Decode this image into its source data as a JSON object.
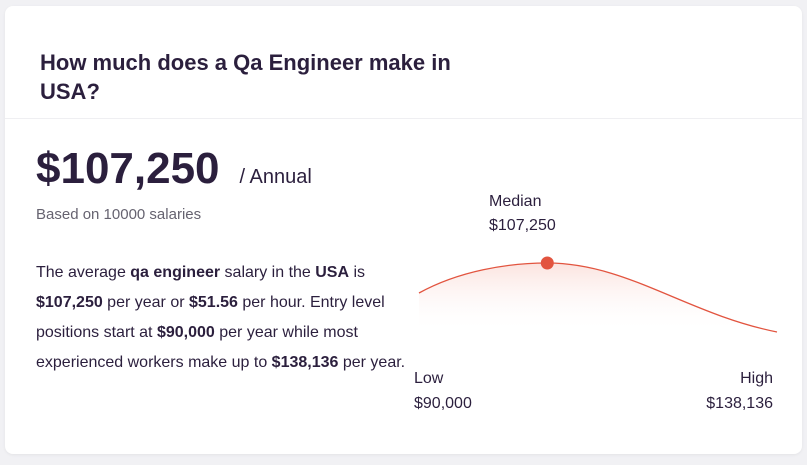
{
  "card": {
    "title": "How much does a Qa Engineer make in USA?"
  },
  "salary": {
    "amount": "$107,250",
    "period": "/ Annual",
    "based_on": "Based on 10000 salaries"
  },
  "description": {
    "p1": "The average ",
    "job": "qa engineer",
    "p2": " salary in the ",
    "location": "USA",
    "p3": " is ",
    "yearly": "$107,250",
    "p4": " per year or ",
    "hourly": "$51.56",
    "p5": " per hour. Entry level positions start at ",
    "entry": "$90,000",
    "p6": " per year while most experienced workers make up to ",
    "max": "$138,136",
    "p7": " per year."
  },
  "chart": {
    "median_label": "Median",
    "median_value": "$107,250",
    "low_label": "Low",
    "low_value": "$90,000",
    "high_label": "High",
    "high_value": "$138,136",
    "curve_color": "#e2543f",
    "fill_color": "#fbe3df"
  },
  "chart_data": {
    "type": "area",
    "x": [
      90000,
      107250,
      138136
    ],
    "title": "",
    "xlabel": "",
    "ylabel": "",
    "xlim": [
      90000,
      138136
    ],
    "grid": false
  }
}
